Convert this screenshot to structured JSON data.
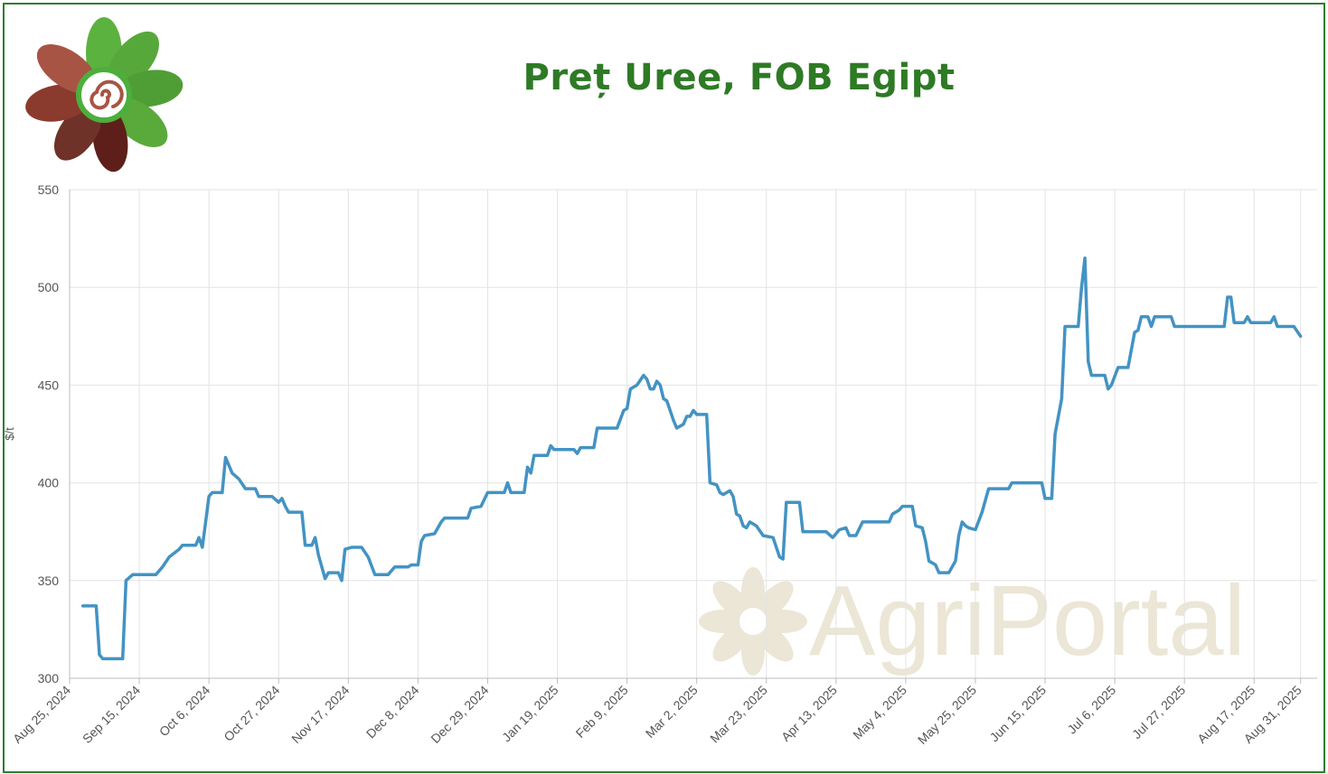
{
  "brand": {
    "logo_icon": "flower-spiral-icon",
    "watermark": "AgriPortal",
    "colors": {
      "green": "#4caf3c",
      "dark_green": "#2e7a25",
      "brown": "#8b3a2e",
      "line": "#4393c3",
      "watermark": "#ebe6d6"
    }
  },
  "chart_data": {
    "type": "line",
    "title": "Preț Uree, FOB Egipt",
    "xlabel": "",
    "ylabel": "$/t",
    "ylim": [
      300,
      550
    ],
    "yticks": [
      300,
      350,
      400,
      450,
      500,
      550
    ],
    "xlim": [
      "2024-08-25",
      "2025-09-05"
    ],
    "xticks": [
      {
        "date": "2024-08-25",
        "label": "Aug 25, 2024"
      },
      {
        "date": "2024-09-15",
        "label": "Sep 15, 2024"
      },
      {
        "date": "2024-10-06",
        "label": "Oct 6, 2024"
      },
      {
        "date": "2024-10-27",
        "label": "Oct 27, 2024"
      },
      {
        "date": "2024-11-17",
        "label": "Nov 17, 2024"
      },
      {
        "date": "2024-12-08",
        "label": "Dec 8, 2024"
      },
      {
        "date": "2024-12-29",
        "label": "Dec 29, 2024"
      },
      {
        "date": "2025-01-19",
        "label": "Jan 19, 2025"
      },
      {
        "date": "2025-02-09",
        "label": "Feb 9, 2025"
      },
      {
        "date": "2025-03-02",
        "label": "Mar 2, 2025"
      },
      {
        "date": "2025-03-23",
        "label": "Mar 23, 2025"
      },
      {
        "date": "2025-04-13",
        "label": "Apr 13, 2025"
      },
      {
        "date": "2025-05-04",
        "label": "May 4, 2025"
      },
      {
        "date": "2025-05-25",
        "label": "May 25, 2025"
      },
      {
        "date": "2025-06-15",
        "label": "Jun 15, 2025"
      },
      {
        "date": "2025-07-06",
        "label": "Jul 6, 2025"
      },
      {
        "date": "2025-07-27",
        "label": "Jul 27, 2025"
      },
      {
        "date": "2025-08-17",
        "label": "Aug 17, 2025"
      },
      {
        "date": "2025-08-31",
        "label": "Aug 31, 2025"
      }
    ],
    "grid": true,
    "series": [
      {
        "color": "#4393c3",
        "points": [
          [
            "2024-08-29",
            337
          ],
          [
            "2024-09-02",
            337
          ],
          [
            "2024-09-03",
            312
          ],
          [
            "2024-09-04",
            310
          ],
          [
            "2024-09-10",
            310
          ],
          [
            "2024-09-11",
            350
          ],
          [
            "2024-09-13",
            353
          ],
          [
            "2024-09-20",
            353
          ],
          [
            "2024-09-22",
            357
          ],
          [
            "2024-09-24",
            362
          ],
          [
            "2024-09-27",
            366
          ],
          [
            "2024-09-28",
            368
          ],
          [
            "2024-10-02",
            368
          ],
          [
            "2024-10-03",
            372
          ],
          [
            "2024-10-04",
            367
          ],
          [
            "2024-10-05",
            380
          ],
          [
            "2024-10-06",
            393
          ],
          [
            "2024-10-07",
            395
          ],
          [
            "2024-10-10",
            395
          ],
          [
            "2024-10-11",
            413
          ],
          [
            "2024-10-13",
            405
          ],
          [
            "2024-10-15",
            402
          ],
          [
            "2024-10-17",
            397
          ],
          [
            "2024-10-20",
            397
          ],
          [
            "2024-10-21",
            393
          ],
          [
            "2024-10-25",
            393
          ],
          [
            "2024-10-27",
            390
          ],
          [
            "2024-10-28",
            392
          ],
          [
            "2024-10-29",
            388
          ],
          [
            "2024-10-30",
            385
          ],
          [
            "2024-11-03",
            385
          ],
          [
            "2024-11-04",
            368
          ],
          [
            "2024-11-06",
            368
          ],
          [
            "2024-11-07",
            372
          ],
          [
            "2024-11-08",
            363
          ],
          [
            "2024-11-10",
            351
          ],
          [
            "2024-11-11",
            354
          ],
          [
            "2024-11-14",
            354
          ],
          [
            "2024-11-15",
            350
          ],
          [
            "2024-11-16",
            366
          ],
          [
            "2024-11-18",
            367
          ],
          [
            "2024-11-21",
            367
          ],
          [
            "2024-11-23",
            362
          ],
          [
            "2024-11-25",
            353
          ],
          [
            "2024-11-29",
            353
          ],
          [
            "2024-12-01",
            357
          ],
          [
            "2024-12-05",
            357
          ],
          [
            "2024-12-06",
            358
          ],
          [
            "2024-12-08",
            358
          ],
          [
            "2024-12-09",
            370
          ],
          [
            "2024-12-10",
            373
          ],
          [
            "2024-12-13",
            374
          ],
          [
            "2024-12-15",
            380
          ],
          [
            "2024-12-16",
            382
          ],
          [
            "2024-12-23",
            382
          ],
          [
            "2024-12-24",
            387
          ],
          [
            "2024-12-27",
            388
          ],
          [
            "2024-12-29",
            395
          ],
          [
            "2025-01-03",
            395
          ],
          [
            "2025-01-04",
            400
          ],
          [
            "2025-01-05",
            395
          ],
          [
            "2025-01-09",
            395
          ],
          [
            "2025-01-10",
            408
          ],
          [
            "2025-01-11",
            405
          ],
          [
            "2025-01-12",
            414
          ],
          [
            "2025-01-16",
            414
          ],
          [
            "2025-01-17",
            419
          ],
          [
            "2025-01-18",
            417
          ],
          [
            "2025-01-24",
            417
          ],
          [
            "2025-01-25",
            415
          ],
          [
            "2025-01-26",
            418
          ],
          [
            "2025-01-30",
            418
          ],
          [
            "2025-01-31",
            428
          ],
          [
            "2025-02-06",
            428
          ],
          [
            "2025-02-08",
            437
          ],
          [
            "2025-02-09",
            438
          ],
          [
            "2025-02-10",
            448
          ],
          [
            "2025-02-12",
            450
          ],
          [
            "2025-02-14",
            455
          ],
          [
            "2025-02-15",
            453
          ],
          [
            "2025-02-16",
            448
          ],
          [
            "2025-02-17",
            448
          ],
          [
            "2025-02-18",
            452
          ],
          [
            "2025-02-19",
            450
          ],
          [
            "2025-02-20",
            443
          ],
          [
            "2025-02-21",
            442
          ],
          [
            "2025-02-23",
            432
          ],
          [
            "2025-02-24",
            428
          ],
          [
            "2025-02-26",
            430
          ],
          [
            "2025-02-27",
            434
          ],
          [
            "2025-02-28",
            434
          ],
          [
            "2025-03-01",
            437
          ],
          [
            "2025-03-02",
            435
          ],
          [
            "2025-03-05",
            435
          ],
          [
            "2025-03-06",
            400
          ],
          [
            "2025-03-08",
            399
          ],
          [
            "2025-03-09",
            395
          ],
          [
            "2025-03-10",
            394
          ],
          [
            "2025-03-12",
            396
          ],
          [
            "2025-03-13",
            393
          ],
          [
            "2025-03-14",
            384
          ],
          [
            "2025-03-15",
            383
          ],
          [
            "2025-03-16",
            378
          ],
          [
            "2025-03-17",
            377
          ],
          [
            "2025-03-18",
            380
          ],
          [
            "2025-03-20",
            378
          ],
          [
            "2025-03-22",
            373
          ],
          [
            "2025-03-25",
            372
          ],
          [
            "2025-03-27",
            362
          ],
          [
            "2025-03-28",
            361
          ],
          [
            "2025-03-29",
            390
          ],
          [
            "2025-04-02",
            390
          ],
          [
            "2025-04-03",
            375
          ],
          [
            "2025-04-10",
            375
          ],
          [
            "2025-04-12",
            372
          ],
          [
            "2025-04-14",
            376
          ],
          [
            "2025-04-16",
            377
          ],
          [
            "2025-04-17",
            373
          ],
          [
            "2025-04-19",
            373
          ],
          [
            "2025-04-21",
            380
          ],
          [
            "2025-04-29",
            380
          ],
          [
            "2025-04-30",
            384
          ],
          [
            "2025-05-02",
            386
          ],
          [
            "2025-05-03",
            388
          ],
          [
            "2025-05-06",
            388
          ],
          [
            "2025-05-07",
            378
          ],
          [
            "2025-05-09",
            377
          ],
          [
            "2025-05-10",
            370
          ],
          [
            "2025-05-11",
            360
          ],
          [
            "2025-05-12",
            359
          ],
          [
            "2025-05-13",
            358
          ],
          [
            "2025-05-14",
            354
          ],
          [
            "2025-05-17",
            354
          ],
          [
            "2025-05-19",
            360
          ],
          [
            "2025-05-20",
            373
          ],
          [
            "2025-05-21",
            380
          ],
          [
            "2025-05-22",
            378
          ],
          [
            "2025-05-23",
            377
          ],
          [
            "2025-05-25",
            376
          ],
          [
            "2025-05-27",
            385
          ],
          [
            "2025-05-29",
            397
          ],
          [
            "2025-06-04",
            397
          ],
          [
            "2025-06-05",
            400
          ],
          [
            "2025-06-14",
            400
          ],
          [
            "2025-06-15",
            392
          ],
          [
            "2025-06-17",
            392
          ],
          [
            "2025-06-18",
            425
          ],
          [
            "2025-06-20",
            443
          ],
          [
            "2025-06-21",
            480
          ],
          [
            "2025-06-25",
            480
          ],
          [
            "2025-06-26",
            500
          ],
          [
            "2025-06-27",
            515
          ],
          [
            "2025-06-28",
            462
          ],
          [
            "2025-06-29",
            455
          ],
          [
            "2025-07-03",
            455
          ],
          [
            "2025-07-04",
            448
          ],
          [
            "2025-07-05",
            450
          ],
          [
            "2025-07-07",
            459
          ],
          [
            "2025-07-10",
            459
          ],
          [
            "2025-07-12",
            477
          ],
          [
            "2025-07-13",
            478
          ],
          [
            "2025-07-14",
            485
          ],
          [
            "2025-07-16",
            485
          ],
          [
            "2025-07-17",
            480
          ],
          [
            "2025-07-18",
            485
          ],
          [
            "2025-07-23",
            485
          ],
          [
            "2025-07-24",
            480
          ],
          [
            "2025-08-08",
            480
          ],
          [
            "2025-08-09",
            495
          ],
          [
            "2025-08-10",
            495
          ],
          [
            "2025-08-11",
            482
          ],
          [
            "2025-08-14",
            482
          ],
          [
            "2025-08-15",
            485
          ],
          [
            "2025-08-16",
            482
          ],
          [
            "2025-08-22",
            482
          ],
          [
            "2025-08-23",
            485
          ],
          [
            "2025-08-24",
            480
          ],
          [
            "2025-08-29",
            480
          ],
          [
            "2025-08-31",
            475
          ]
        ]
      }
    ]
  }
}
